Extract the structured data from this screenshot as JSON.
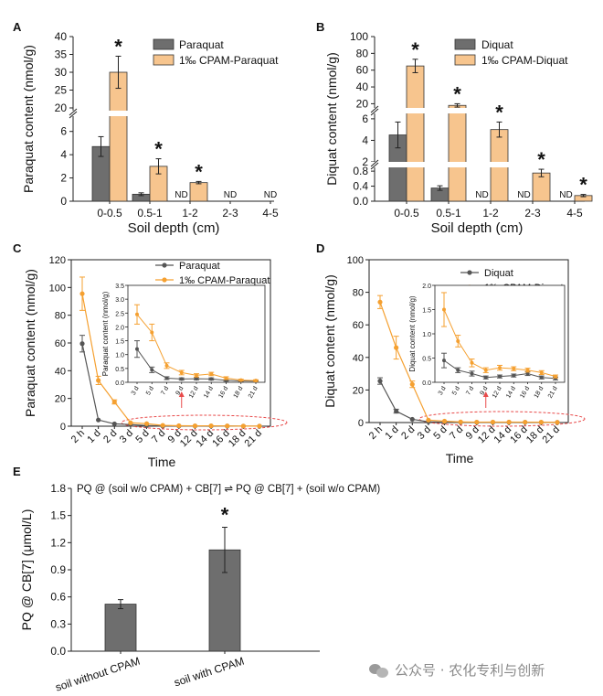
{
  "panels": {
    "A": {
      "letter": "A",
      "ylabel": "Paraquat content (nmol/g)",
      "xlabel": "Soil depth (cm)",
      "categories": [
        "0-0.5",
        "0.5-1",
        "1-2",
        "2-3",
        "4-5"
      ],
      "legend": [
        "Paraquat",
        "1‰ CPAM-Paraquat"
      ],
      "ticks_low": [
        "0",
        "2",
        "4",
        "6"
      ],
      "ticks_high": [
        "20",
        "25",
        "30",
        "35",
        "40"
      ],
      "nd": "ND",
      "star": "*"
    },
    "B": {
      "letter": "B",
      "ylabel": "Diquat content (nmol/g)",
      "xlabel": "Soil depth (cm)",
      "categories": [
        "0-0.5",
        "0.5-1",
        "1-2",
        "2-3",
        "4-5"
      ],
      "legend": [
        "Diquat",
        "1‰ CPAM-Diquat"
      ],
      "ticks_low": [
        "0.0",
        "0.4",
        "0.8"
      ],
      "ticks_mid": [
        "2",
        "4",
        "6"
      ],
      "ticks_high": [
        "20",
        "40",
        "60",
        "80",
        "100"
      ],
      "nd": "ND",
      "star": "*"
    },
    "C": {
      "letter": "C",
      "ylabel": "Paraquat content (nmol/g)",
      "xlabel": "Time",
      "legend": [
        "Paraquat",
        "1‰ CPAM-Paraquat"
      ],
      "yticks": [
        "0",
        "20",
        "40",
        "60",
        "80",
        "100",
        "120"
      ],
      "inset_ylabel": "Paraquat content (nmol/g)",
      "inset_yticks": [
        "0.0",
        "0.5",
        "1.0",
        "1.5",
        "2.0",
        "2.5",
        "3.0",
        "3.5"
      ]
    },
    "D": {
      "letter": "D",
      "ylabel": "Diquat content (nmol/g)",
      "xlabel": "Time",
      "legend": [
        "Diquat",
        "1‰ CPAM-Diquat"
      ],
      "yticks": [
        "0",
        "20",
        "40",
        "60",
        "80",
        "100"
      ],
      "inset_ylabel": "Diquat content (nmol/g)",
      "inset_yticks": [
        "0.0",
        "0.5",
        "1.0",
        "1.5",
        "2.0"
      ]
    },
    "E": {
      "letter": "E",
      "ylabel": "PQ @ CB[7] (μmol/L)",
      "equation": "PQ @ (soil w/o CPAM) + CB[7] ⇌ PQ @ CB[7] + (soil w/o CPAM)",
      "yticks": [
        "0.0",
        "0.3",
        "0.6",
        "0.9",
        "1.2",
        "1.5",
        "1.8"
      ],
      "star": "*"
    }
  },
  "time_labels": [
    "2 h",
    "1 d",
    "2 d",
    "3 d",
    "5 d",
    "7 d",
    "9 d",
    "12 d",
    "14 d",
    "16 d",
    "18 d",
    "21 d"
  ],
  "inset_time_labels": [
    "3 d",
    "5 d",
    "7 d",
    "9 d",
    "12 d",
    "14 d",
    "16 d",
    "18 d",
    "21 d"
  ],
  "colors": {
    "gray_bar": "#6e6e6e",
    "orange_bar": "#f7c58e",
    "gray_line": "#555555",
    "orange_line": "#f5a030",
    "highlight": "#e84a4a"
  },
  "watermark": "公众号 · 农化专利与创新",
  "chart_data": [
    {
      "panel": "A",
      "type": "bar",
      "title": "",
      "xlabel": "Soil depth (cm)",
      "ylabel": "Paraquat content (nmol/g)",
      "categories": [
        "0-0.5",
        "0.5-1",
        "1-2",
        "2-3",
        "4-5"
      ],
      "axis_break": [
        6.5,
        20
      ],
      "ylim": [
        0,
        40
      ],
      "series": [
        {
          "name": "Paraquat",
          "values": [
            4.7,
            0.6,
            null,
            null,
            null
          ],
          "errors": [
            0.85,
            0.12,
            null,
            null,
            null
          ]
        },
        {
          "name": "1‰ CPAM-Paraquat",
          "values": [
            30,
            3.0,
            1.6,
            null,
            null
          ],
          "errors": [
            4.5,
            0.65,
            0.1,
            null,
            null
          ]
        }
      ],
      "annotations": [
        "* 0-0.5",
        "* 0.5-1",
        "* 1-2",
        "ND 1-2 Paraquat",
        "ND 2-3",
        "ND 4-5"
      ]
    },
    {
      "panel": "B",
      "type": "bar",
      "title": "",
      "xlabel": "Soil depth (cm)",
      "ylabel": "Diquat content (nmol/g)",
      "categories": [
        "0-0.5",
        "0.5-1",
        "1-2",
        "2-3",
        "4-5"
      ],
      "axis_breaks": [
        [
          0.9,
          2
        ],
        [
          6.5,
          15
        ]
      ],
      "ylim": [
        0,
        100
      ],
      "series": [
        {
          "name": "Diquat",
          "values": [
            4.5,
            0.35,
            null,
            null,
            null
          ],
          "errors": [
            1.2,
            0.06,
            null,
            null,
            null
          ]
        },
        {
          "name": "1‰ CPAM-Diquat",
          "values": [
            65,
            18,
            5.0,
            0.75,
            0.15
          ],
          "errors": [
            8,
            2,
            0.7,
            0.1,
            0.03
          ]
        }
      ],
      "annotations": [
        "* all CPAM-Diquat",
        "ND 1-2",
        "ND 2-3",
        "ND 4-5"
      ]
    },
    {
      "panel": "C",
      "type": "line",
      "title": "",
      "xlabel": "Time",
      "ylabel": "Paraquat content (nmol/g)",
      "x": [
        "2 h",
        "1 d",
        "2 d",
        "3 d",
        "5 d",
        "7 d",
        "9 d",
        "12 d",
        "14 d",
        "16 d",
        "18 d",
        "21 d"
      ],
      "ylim": [
        0,
        120
      ],
      "series": [
        {
          "name": "Paraquat",
          "values": [
            59.5,
            4.5,
            1.7,
            1.2,
            0.45,
            0.15,
            0.12,
            0.13,
            0.12,
            0.07,
            0.05,
            0.04
          ],
          "errors": [
            6,
            1,
            0.5,
            0.3,
            0.1,
            0.05,
            0.04,
            0.04,
            0.04,
            0.03,
            0.02,
            0.02
          ]
        },
        {
          "name": "1‰ CPAM-Paraquat",
          "values": [
            95.5,
            33,
            17.5,
            2.45,
            1.8,
            0.6,
            0.35,
            0.25,
            0.3,
            0.15,
            0.08,
            0.06
          ],
          "errors": [
            12,
            3,
            1.5,
            0.35,
            0.3,
            0.1,
            0.08,
            0.06,
            0.06,
            0.05,
            0.03,
            0.03
          ]
        }
      ],
      "inset": {
        "x": [
          "3 d",
          "5 d",
          "7 d",
          "9 d",
          "12 d",
          "14 d",
          "16 d",
          "18 d",
          "21 d"
        ],
        "ylim": [
          0,
          3.5
        ]
      }
    },
    {
      "panel": "D",
      "type": "line",
      "title": "",
      "xlabel": "Time",
      "ylabel": "Diquat content (nmol/g)",
      "x": [
        "2 h",
        "1 d",
        "2 d",
        "3 d",
        "5 d",
        "7 d",
        "9 d",
        "12 d",
        "14 d",
        "16 d",
        "18 d",
        "21 d"
      ],
      "ylim": [
        0,
        100
      ],
      "series": [
        {
          "name": "Diquat",
          "values": [
            25.5,
            7,
            2,
            0.45,
            0.25,
            0.18,
            0.1,
            0.12,
            0.14,
            0.18,
            0.1,
            0.08
          ],
          "errors": [
            2,
            1.2,
            0.4,
            0.15,
            0.05,
            0.05,
            0.03,
            0.03,
            0.03,
            0.04,
            0.03,
            0.03
          ]
        },
        {
          "name": "1‰ CPAM-Diquat",
          "values": [
            74,
            46,
            23.5,
            1.5,
            0.85,
            0.4,
            0.25,
            0.3,
            0.28,
            0.25,
            0.2,
            0.12
          ],
          "errors": [
            4,
            7,
            2,
            0.35,
            0.12,
            0.08,
            0.05,
            0.05,
            0.04,
            0.04,
            0.04,
            0.03
          ]
        }
      ],
      "inset": {
        "x": [
          "3 d",
          "5 d",
          "7 d",
          "9 d",
          "12 d",
          "14 d",
          "16 d",
          "18 d",
          "21 d"
        ],
        "ylim": [
          0,
          2.0
        ]
      }
    },
    {
      "panel": "E",
      "type": "bar",
      "title": "PQ @ (soil w/o CPAM) + CB[7] ⇌ PQ @ CB[7] + (soil w/o CPAM)",
      "xlabel": "",
      "ylabel": "PQ @ CB[7] (μmol/L)",
      "categories": [
        "soil without CPAM",
        "soil with CPAM"
      ],
      "values": [
        0.52,
        1.12
      ],
      "errors": [
        0.05,
        0.25
      ],
      "ylim": [
        0,
        1.8
      ],
      "annotations": [
        "* soil with CPAM"
      ]
    }
  ]
}
